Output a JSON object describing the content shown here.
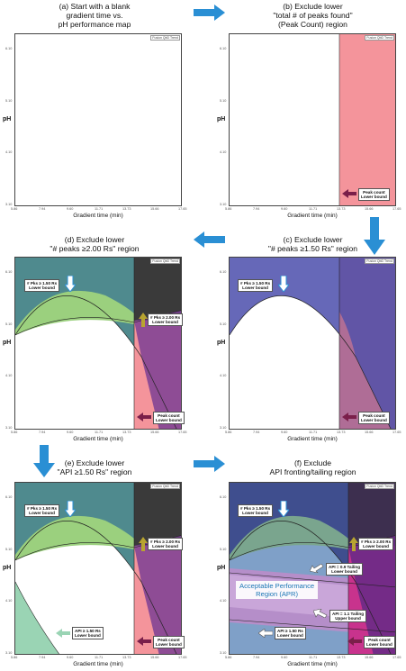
{
  "titles": {
    "a": [
      "(a) Start with a blank",
      "gradient time vs.",
      "pH performance map"
    ],
    "b": [
      "(b) Exclude lower",
      "\"total # of peaks found\"",
      "(Peak Count) region"
    ],
    "c": [
      "(c) Exclude lower",
      "\"# peaks ≥1.50 Rs\" region"
    ],
    "d": [
      "(d) Exclude lower",
      "\"# peaks ≥2.00 Rs\" region"
    ],
    "e": [
      "(e) Exclude lower",
      "\"API ≥1.50 Rs\" region"
    ],
    "f": [
      "(f) Exclude",
      "API fronting/tailing region"
    ]
  },
  "axis": {
    "ylabel": "pH",
    "xlabel": "Gradient time (min)",
    "xticks": [
      "5.86",
      "7.94",
      "9.60",
      "11.71",
      "13.73",
      "15.66",
      "17.65"
    ],
    "yticks": [
      "3.10",
      "4.10",
      "5.10",
      "6.10"
    ],
    "corner": "Fusion QbD Trend"
  },
  "labels": {
    "peak_count": [
      "Peak count",
      "Lower bound"
    ],
    "peaks150": [
      "# Pks ≥ 1.50 Rs",
      "Lower bound"
    ],
    "peaks200": [
      "# Pks ≥ 2.00 Rs",
      "Lower bound"
    ],
    "api150": [
      "API ≥ 1.50 Rs",
      "Lower bound"
    ],
    "api09": [
      "API = 0.9 Tailing",
      "Lower bound"
    ],
    "api11": [
      "API = 1.1 Tailing",
      "Upper bound"
    ],
    "apr": [
      "Acceptable Performance",
      "Region (APR)"
    ]
  },
  "colors": {
    "peak_count": "#f4949b",
    "peaks150": "#6668b8",
    "peaks200": "#3a3a3a",
    "api150": "#9ad4b4",
    "arrow": "#2a8fd4"
  }
}
